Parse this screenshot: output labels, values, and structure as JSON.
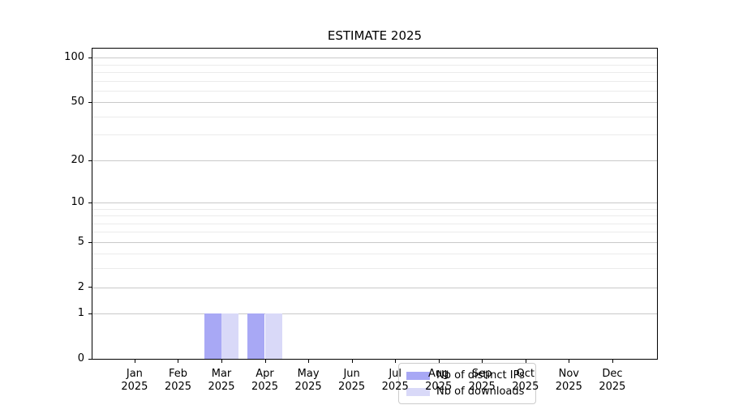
{
  "title": "ESTIMATE 2025",
  "chart_data": {
    "type": "bar",
    "title": "ESTIMATE 2025",
    "categories": [
      "Jan\n2025",
      "Feb\n2025",
      "Mar\n2025",
      "Apr\n2025",
      "May\n2025",
      "Jun\n2025",
      "Jul\n2025",
      "Aug\n2025",
      "Sep\n2025",
      "Oct\n2025",
      "Nov\n2025",
      "Dec\n2025"
    ],
    "series": [
      {
        "name": "Nb of distinct IPs",
        "color": "#a8a8f5",
        "values": [
          0,
          0,
          1,
          1,
          0,
          0,
          0,
          0,
          0,
          0,
          0,
          0
        ]
      },
      {
        "name": "Nb of downloads",
        "color": "#d9d9f8",
        "values": [
          0,
          0,
          1,
          1,
          0,
          0,
          0,
          0,
          0,
          0,
          0,
          0
        ]
      }
    ],
    "yscale": "log1p",
    "ylim": [
      0,
      115
    ],
    "yticks_major": [
      0,
      1,
      2,
      5,
      10,
      20,
      50,
      100
    ],
    "yticklabels": [
      "0",
      "1",
      "2",
      "5",
      "10",
      "20",
      "50",
      "100"
    ],
    "yticks_minor": [
      3,
      4,
      6,
      7,
      8,
      9,
      30,
      40,
      60,
      70,
      80,
      90
    ],
    "grid": true,
    "legend_position": "lower center",
    "bar_group_width_fraction": 0.8
  },
  "colors": {
    "background": "#ffffff",
    "spine": "#000000",
    "grid_major": "#c9c9c9",
    "grid_minor": "#ebebeb",
    "text": "#000000",
    "legend_border": "#cccccc"
  }
}
